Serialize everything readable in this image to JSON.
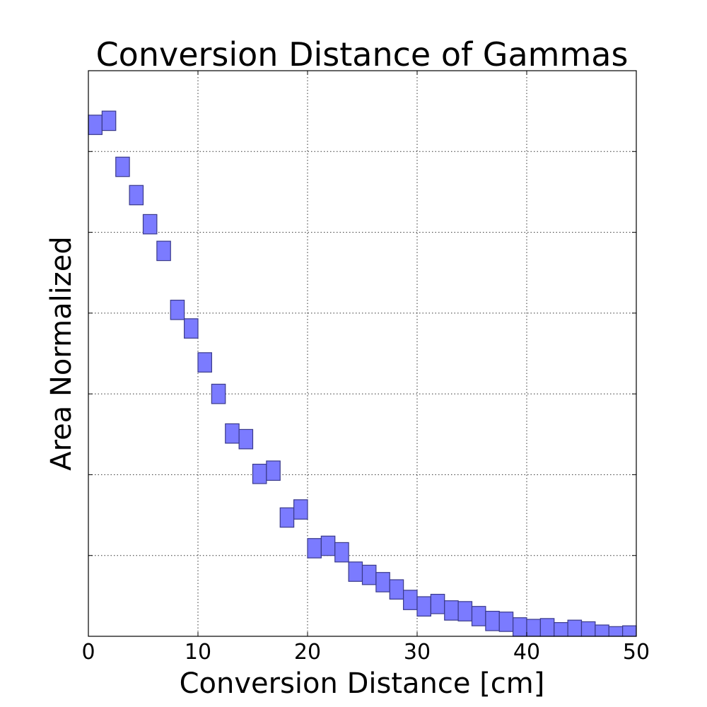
{
  "chart_data": {
    "type": "bar",
    "title": "Conversion Distance of Gammas",
    "xlabel": "Conversion Distance [cm]",
    "ylabel": "Area Normalized",
    "xlim": [
      0,
      50
    ],
    "ylim": [
      0,
      7
    ],
    "x_ticks": [
      "0",
      "10",
      "20",
      "30",
      "40",
      "50"
    ],
    "y_ticks_labeled": false,
    "grid": true,
    "style": "floating steps",
    "bar_color": "#7b7bff",
    "bar_edge_color": "#3a3a8a",
    "bin_width": 1.25,
    "bins": [
      {
        "x0": 0.0,
        "center": 6.33
      },
      {
        "x0": 1.25,
        "center": 6.38
      },
      {
        "x0": 2.5,
        "center": 5.81
      },
      {
        "x0": 3.75,
        "center": 5.46
      },
      {
        "x0": 5.0,
        "center": 5.1
      },
      {
        "x0": 6.25,
        "center": 4.77
      },
      {
        "x0": 7.5,
        "center": 4.04
      },
      {
        "x0": 8.75,
        "center": 3.81
      },
      {
        "x0": 10.0,
        "center": 3.39
      },
      {
        "x0": 11.25,
        "center": 3.0
      },
      {
        "x0": 12.5,
        "center": 2.51
      },
      {
        "x0": 13.75,
        "center": 2.44
      },
      {
        "x0": 15.0,
        "center": 2.01
      },
      {
        "x0": 16.25,
        "center": 2.05
      },
      {
        "x0": 17.5,
        "center": 1.47
      },
      {
        "x0": 18.75,
        "center": 1.57
      },
      {
        "x0": 20.0,
        "center": 1.09
      },
      {
        "x0": 21.25,
        "center": 1.12
      },
      {
        "x0": 22.5,
        "center": 1.04
      },
      {
        "x0": 23.75,
        "center": 0.8
      },
      {
        "x0": 25.0,
        "center": 0.76
      },
      {
        "x0": 26.25,
        "center": 0.67
      },
      {
        "x0": 27.5,
        "center": 0.58
      },
      {
        "x0": 28.75,
        "center": 0.45
      },
      {
        "x0": 30.0,
        "center": 0.37
      },
      {
        "x0": 31.25,
        "center": 0.4
      },
      {
        "x0": 32.5,
        "center": 0.32
      },
      {
        "x0": 33.75,
        "center": 0.31
      },
      {
        "x0": 35.0,
        "center": 0.25
      },
      {
        "x0": 36.25,
        "center": 0.19
      },
      {
        "x0": 37.5,
        "center": 0.18
      },
      {
        "x0": 38.75,
        "center": 0.11
      },
      {
        "x0": 40.0,
        "center": 0.09
      },
      {
        "x0": 41.25,
        "center": 0.1
      },
      {
        "x0": 42.5,
        "center": 0.05
      },
      {
        "x0": 43.75,
        "center": 0.08
      },
      {
        "x0": 45.0,
        "center": 0.06
      },
      {
        "x0": 46.25,
        "center": 0.02
      },
      {
        "x0": 47.5,
        "center": 0.0
      },
      {
        "x0": 48.75,
        "center": 0.01
      }
    ]
  }
}
